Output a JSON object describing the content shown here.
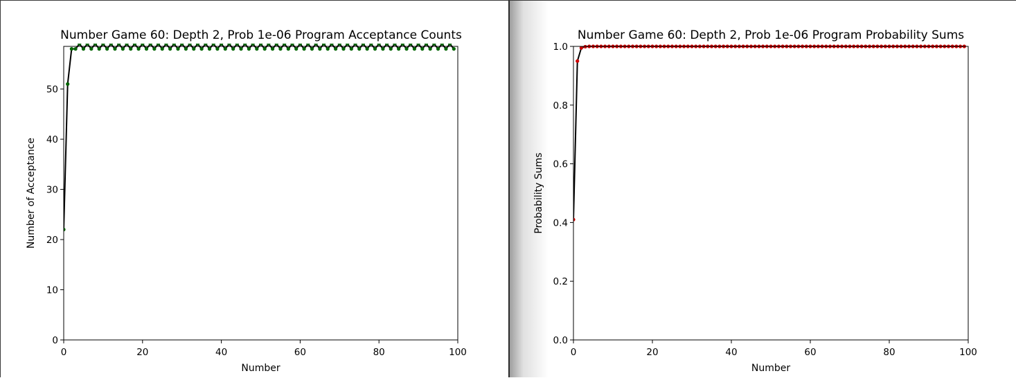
{
  "chart_data": [
    {
      "type": "line",
      "title": "Number Game 60: Depth 2, Prob 1e-06 Program Acceptance Counts",
      "xlabel": "Number",
      "ylabel": "Number of Acceptance",
      "xlim": [
        0,
        100
      ],
      "ylim": [
        0,
        58.5
      ],
      "xticks": [
        "0",
        "20",
        "40",
        "60",
        "80",
        "100"
      ],
      "yticks": [
        "0",
        "10",
        "20",
        "30",
        "40",
        "50"
      ],
      "grid": false,
      "marker_color": "#006400",
      "line_color": "#000000",
      "series": [
        {
          "pattern_note": "",
          "x": [
            0,
            1,
            2,
            3,
            4,
            5,
            6,
            7,
            8,
            9,
            10,
            11,
            12,
            13,
            14,
            15,
            16,
            17,
            18,
            19,
            20,
            21,
            22,
            23,
            24,
            25,
            26,
            27,
            28,
            29,
            30,
            31,
            32,
            33,
            34,
            35,
            36,
            37,
            38,
            39,
            40,
            41,
            42,
            43,
            44,
            45,
            46,
            47,
            48,
            49,
            50,
            51,
            52,
            53,
            54,
            55,
            56,
            57,
            58,
            59,
            60,
            61,
            62,
            63,
            64,
            65,
            66,
            67,
            68,
            69,
            70,
            71,
            72,
            73,
            74,
            75,
            76,
            77,
            78,
            79,
            80,
            81,
            82,
            83,
            84,
            85,
            86,
            87,
            88,
            89,
            90,
            91,
            92,
            93,
            94,
            95,
            96,
            97,
            98,
            99
          ],
          "y": [
            22,
            51,
            58,
            58,
            59,
            58,
            59,
            58,
            59,
            58,
            59,
            58,
            59,
            58,
            59,
            58,
            59,
            58,
            59,
            58,
            59,
            58,
            59,
            58,
            59,
            58,
            59,
            58,
            59,
            58,
            59,
            58,
            59,
            58,
            59,
            58,
            59,
            58,
            59,
            58,
            59,
            58,
            59,
            58,
            59,
            58,
            59,
            58,
            59,
            58,
            59,
            58,
            59,
            58,
            59,
            58,
            59,
            58,
            59,
            58,
            59,
            58,
            59,
            58,
            59,
            58,
            59,
            58,
            59,
            58,
            59,
            58,
            59,
            58,
            59,
            58,
            59,
            58,
            59,
            58,
            59,
            58,
            59,
            58,
            59,
            58,
            59,
            58,
            59,
            58,
            59,
            58,
            59,
            58,
            59,
            58,
            59,
            58,
            59,
            58
          ]
        }
      ]
    },
    {
      "type": "line",
      "title": "Number Game 60: Depth 2, Prob 1e-06 Program Probability Sums",
      "xlabel": "Number",
      "ylabel": "Probability Sums",
      "xlim": [
        0,
        100
      ],
      "ylim": [
        0,
        1.0
      ],
      "xticks": [
        "0",
        "20",
        "40",
        "60",
        "80",
        "100"
      ],
      "yticks": [
        "0.0",
        "0.2",
        "0.4",
        "0.6",
        "0.8",
        "1.0"
      ],
      "grid": false,
      "marker_color": "#cc0000",
      "line_color": "#000000",
      "series": [
        {
          "x": [
            0,
            1,
            2,
            3,
            4,
            5,
            6,
            7,
            8,
            9,
            10,
            11,
            12,
            13,
            14,
            15,
            16,
            17,
            18,
            19,
            20,
            21,
            22,
            23,
            24,
            25,
            26,
            27,
            28,
            29,
            30,
            31,
            32,
            33,
            34,
            35,
            36,
            37,
            38,
            39,
            40,
            41,
            42,
            43,
            44,
            45,
            46,
            47,
            48,
            49,
            50,
            51,
            52,
            53,
            54,
            55,
            56,
            57,
            58,
            59,
            60,
            61,
            62,
            63,
            64,
            65,
            66,
            67,
            68,
            69,
            70,
            71,
            72,
            73,
            74,
            75,
            76,
            77,
            78,
            79,
            80,
            81,
            82,
            83,
            84,
            85,
            86,
            87,
            88,
            89,
            90,
            91,
            92,
            93,
            94,
            95,
            96,
            97,
            98,
            99
          ],
          "y": [
            0.41,
            0.95,
            0.995,
            0.999,
            1,
            1,
            1,
            1,
            1,
            1,
            1,
            1,
            1,
            1,
            1,
            1,
            1,
            1,
            1,
            1,
            1,
            1,
            1,
            1,
            1,
            1,
            1,
            1,
            1,
            1,
            1,
            1,
            1,
            1,
            1,
            1,
            1,
            1,
            1,
            1,
            1,
            1,
            1,
            1,
            1,
            1,
            1,
            1,
            1,
            1,
            1,
            1,
            1,
            1,
            1,
            1,
            1,
            1,
            1,
            1,
            1,
            1,
            1,
            1,
            1,
            1,
            1,
            1,
            1,
            1,
            1,
            1,
            1,
            1,
            1,
            1,
            1,
            1,
            1,
            1,
            1,
            1,
            1,
            1,
            1,
            1,
            1,
            1,
            1,
            1,
            1,
            1,
            1,
            1,
            1,
            1,
            1,
            1,
            1,
            1
          ]
        }
      ]
    }
  ]
}
